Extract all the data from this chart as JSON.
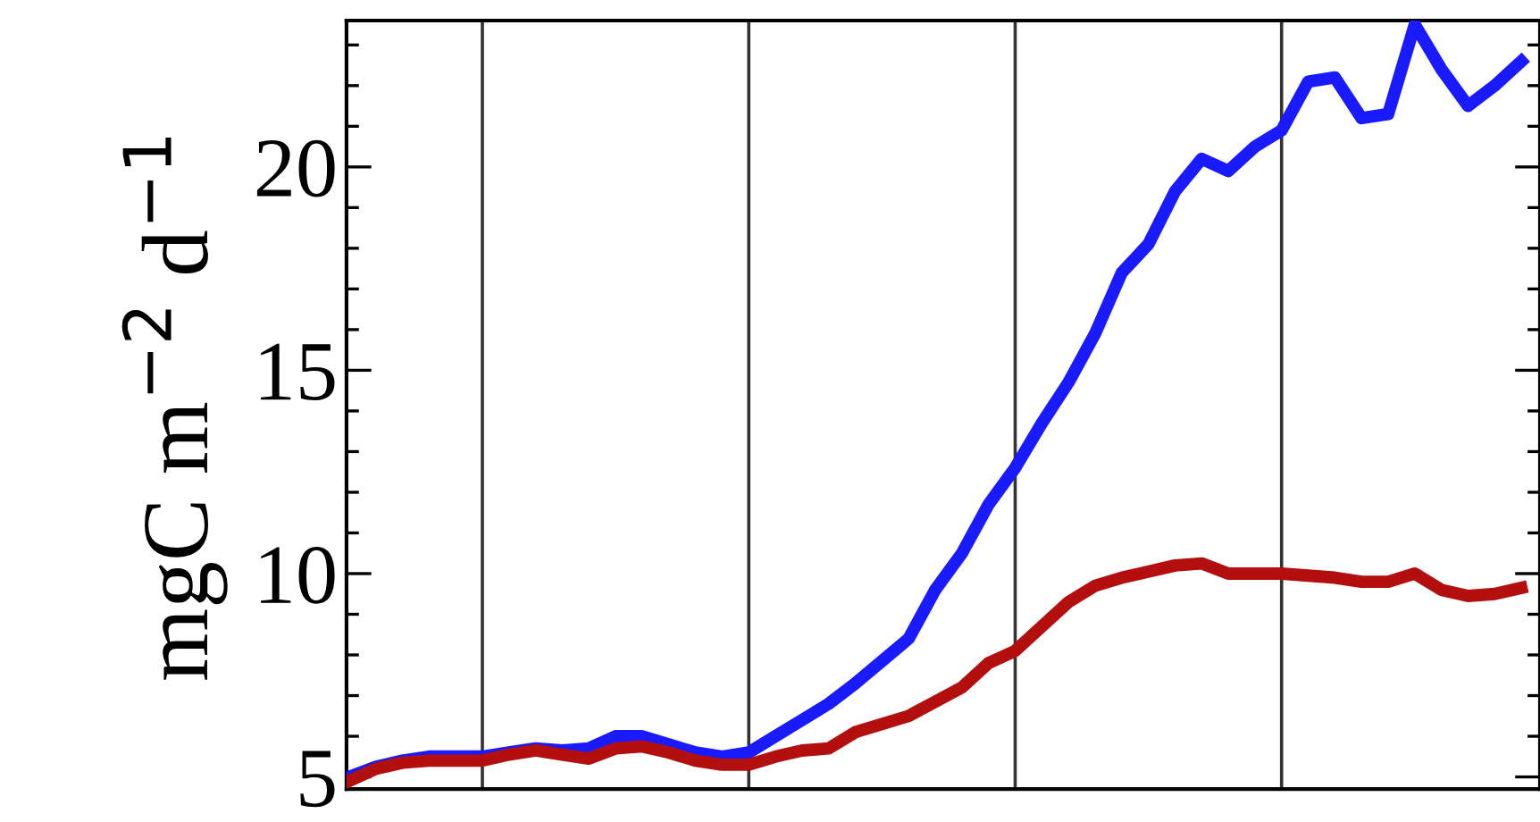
{
  "chart_data": {
    "type": "line",
    "ylabel": "mgC m$^{−2}$ d$^{−1}$",
    "categories": [
      null,
      null,
      null,
      null,
      null,
      null,
      null,
      null,
      null,
      null,
      null,
      null,
      null,
      null,
      null,
      null,
      null,
      null,
      null,
      null,
      null,
      null,
      null,
      null,
      null,
      null,
      null,
      null,
      null,
      null,
      null,
      null,
      null,
      null,
      null,
      null,
      null,
      null,
      null,
      null,
      null,
      null,
      null,
      null,
      null
    ],
    "ylim": [
      4.7,
      23.6
    ],
    "yticks": [
      5,
      10,
      15,
      20
    ],
    "tick_labels": "y",
    "grid": "x",
    "marker": "none",
    "line_style": "solid",
    "series": [
      {
        "color": "#1a1aff",
        "values": [
          5.0,
          5.25,
          5.4,
          5.5,
          5.5,
          5.5,
          5.6,
          5.7,
          5.65,
          5.7,
          6.0,
          6.0,
          5.8,
          5.6,
          5.5,
          5.6,
          6.0,
          6.4,
          6.8,
          7.3,
          7.85,
          8.4,
          9.6,
          10.5,
          11.7,
          12.6,
          13.7,
          14.7,
          15.9,
          17.4,
          18.1,
          19.4,
          20.2,
          19.9,
          20.5,
          20.9,
          22.1,
          22.2,
          21.2,
          21.3,
          23.5,
          22.4,
          21.5,
          22.0,
          22.6
        ]
      },
      {
        "color": "#b30f0f",
        "values": [
          4.9,
          5.2,
          5.35,
          5.4,
          5.4,
          5.4,
          5.55,
          5.65,
          5.55,
          5.45,
          5.7,
          5.75,
          5.6,
          5.4,
          5.3,
          5.3,
          5.5,
          5.65,
          5.7,
          6.1,
          6.3,
          6.5,
          6.85,
          7.2,
          7.8,
          8.1,
          8.7,
          9.3,
          9.7,
          9.9,
          10.05,
          10.2,
          10.25,
          10.0,
          10.0,
          10.0,
          9.95,
          9.9,
          9.8,
          9.8,
          10.0,
          9.6,
          9.45,
          9.5,
          9.65
        ]
      }
    ]
  }
}
